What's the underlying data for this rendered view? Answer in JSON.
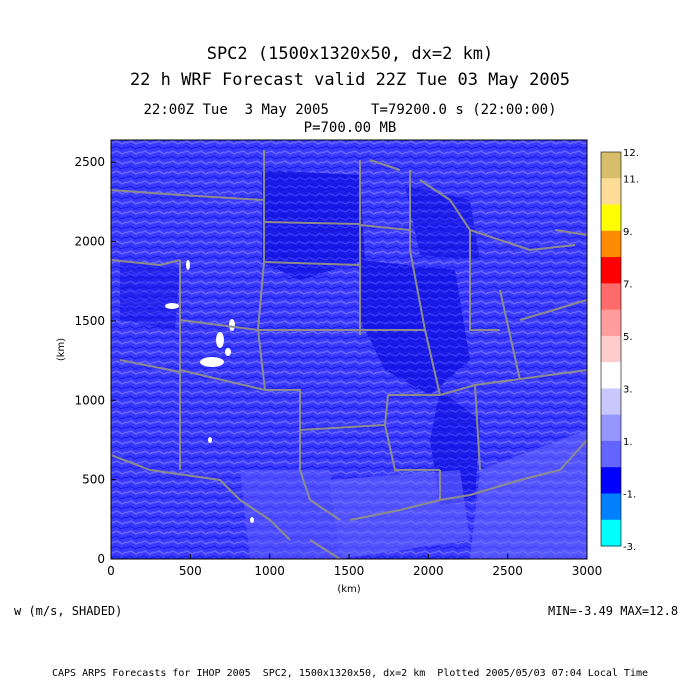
{
  "title": {
    "line1": "SPC2 (1500x1320x50, dx=2 km)",
    "line2": "22 h WRF Forecast valid 22Z Tue 03 May 2005",
    "line3": "22:00Z Tue  3 May 2005     T=79200.0 s (22:00:00)",
    "line4": "P=700.00 MB"
  },
  "axes": {
    "xlabel": "(km)",
    "ylabel": "(km)",
    "xticks": [
      "0",
      "500",
      "1000",
      "1500",
      "2000",
      "2500",
      "3000"
    ],
    "yticks": [
      "0",
      "500",
      "1000",
      "1500",
      "2000",
      "2500"
    ],
    "xlim": [
      0,
      3000
    ],
    "ylim": [
      0,
      2640
    ]
  },
  "colorbar": {
    "labels": [
      "12.",
      "11.",
      "9.",
      "7.",
      "5.",
      "3.",
      "1.",
      "-1.",
      "-3."
    ],
    "colors": [
      "#d8bd6a",
      "#fcdc96",
      "#ffff00",
      "#ff8c00",
      "#ff0000",
      "#ff6a6a",
      "#ff9c9c",
      "#ffcccc",
      "#ffffff",
      "#c8c8ff",
      "#9696ff",
      "#6464ff",
      "#0000ff",
      "#0080ff",
      "#00ffff"
    ]
  },
  "field": {
    "name": "w (m/s, SHADED)",
    "stats": "MIN=-3.49 MAX=12.8",
    "dominant_colors": [
      "#5a5aff",
      "#1414e6",
      "#3030f0"
    ]
  },
  "credit": "CAPS ARPS Forecasts for IHOP 2005  SPC2, 1500x1320x50, dx=2 km  Plotted 2005/05/03 07:04 Local Time"
}
